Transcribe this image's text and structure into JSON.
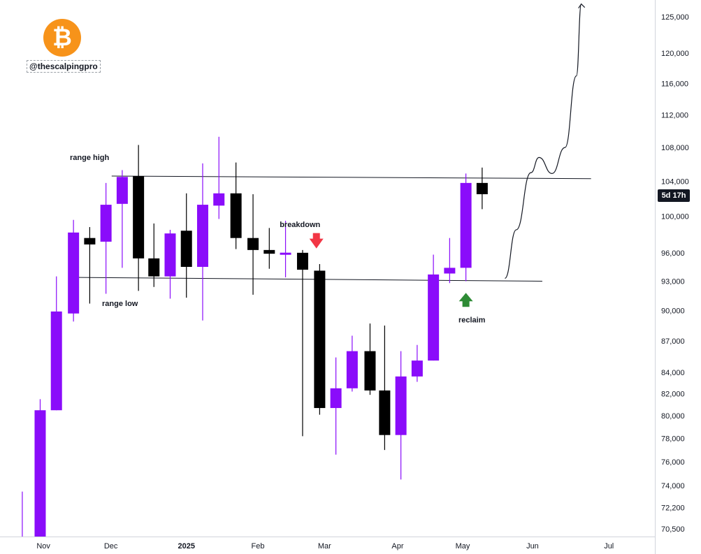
{
  "brand": {
    "logo_glyph": "₿",
    "logo_color": "#f7931a",
    "handle": "@thescalpingpro"
  },
  "price_badge": "5d 17h",
  "colors": {
    "bull": "#8a0cfa",
    "bear": "#000000",
    "down_arrow": "#f23645",
    "up_arrow": "#2e8b35",
    "line": "#131722",
    "axis_border": "#d1d4dc"
  },
  "chart_data": {
    "type": "candlestick",
    "title": "",
    "xlabel": "",
    "ylabel": "",
    "y_scale": "log",
    "ylim": [
      69500,
      129000
    ],
    "y_ticks": [
      125000,
      120000,
      116000,
      112000,
      108000,
      104000,
      100000,
      96000,
      93000,
      90000,
      87000,
      84000,
      82000,
      80000,
      78000,
      76000,
      74000,
      72200,
      70500
    ],
    "y_tick_labels": [
      "125,000",
      "120,000",
      "116,000",
      "112,000",
      "108,000",
      "104,000",
      "100,000",
      "96,000",
      "93,000",
      "90,000",
      "87,000",
      "84,000",
      "82,000",
      "80,000",
      "78,000",
      "76,000",
      "74,000",
      "72,200",
      "70,500"
    ],
    "x_tick_labels": [
      {
        "label": "Nov",
        "week": 0.5,
        "bold": false
      },
      {
        "label": "Dec",
        "week": 4.65,
        "bold": false
      },
      {
        "label": "2025",
        "week": 9.3,
        "bold": true
      },
      {
        "label": "Feb",
        "week": 13.7,
        "bold": false
      },
      {
        "label": "Mar",
        "week": 17.8,
        "bold": false
      },
      {
        "label": "Apr",
        "week": 22.3,
        "bold": false
      },
      {
        "label": "May",
        "week": 26.3,
        "bold": false
      },
      {
        "label": "Jun",
        "week": 30.6,
        "bold": false
      },
      {
        "label": "Jul",
        "week": 35.3,
        "bold": false
      }
    ],
    "candles": [
      {
        "week": -0.8,
        "open": 69000,
        "high": 73500,
        "low": 69000,
        "close": 69500
      },
      {
        "week": 0.3,
        "open": 69000,
        "high": 81500,
        "low": 69000,
        "close": 80500
      },
      {
        "week": 1.3,
        "open": 80500,
        "high": 93500,
        "low": 80500,
        "close": 89900
      },
      {
        "week": 2.35,
        "open": 89700,
        "high": 99600,
        "low": 88900,
        "close": 98200
      },
      {
        "week": 3.35,
        "open": 97600,
        "high": 98800,
        "low": 90700,
        "close": 96900
      },
      {
        "week": 4.35,
        "open": 97200,
        "high": 103800,
        "low": 91700,
        "close": 101300
      },
      {
        "week": 5.35,
        "open": 101400,
        "high": 105300,
        "low": 94400,
        "close": 104500
      },
      {
        "week": 6.35,
        "open": 104600,
        "high": 108300,
        "low": 92000,
        "close": 95400
      },
      {
        "week": 7.3,
        "open": 95400,
        "high": 99200,
        "low": 92400,
        "close": 93500
      },
      {
        "week": 8.3,
        "open": 93500,
        "high": 98500,
        "low": 91200,
        "close": 98100
      },
      {
        "week": 9.3,
        "open": 98400,
        "high": 102600,
        "low": 91300,
        "close": 94500
      },
      {
        "week": 10.3,
        "open": 94500,
        "high": 106100,
        "low": 89000,
        "close": 101300
      },
      {
        "week": 11.3,
        "open": 101200,
        "high": 109300,
        "low": 99700,
        "close": 102600
      },
      {
        "week": 12.35,
        "open": 102600,
        "high": 106200,
        "low": 96400,
        "close": 97600
      },
      {
        "week": 13.4,
        "open": 97600,
        "high": 102500,
        "low": 91600,
        "close": 96300
      },
      {
        "week": 14.4,
        "open": 96300,
        "high": 98700,
        "low": 94300,
        "close": 95900
      },
      {
        "week": 15.4,
        "open": 95800,
        "high": 99500,
        "low": 93400,
        "close": 96000
      },
      {
        "week": 16.45,
        "open": 96000,
        "high": 96300,
        "low": 78200,
        "close": 94200
      },
      {
        "week": 17.5,
        "open": 94100,
        "high": 94800,
        "low": 80100,
        "close": 80700
      },
      {
        "week": 18.5,
        "open": 80700,
        "high": 85400,
        "low": 76600,
        "close": 82500
      },
      {
        "week": 19.5,
        "open": 82500,
        "high": 87500,
        "low": 82200,
        "close": 86000
      },
      {
        "week": 20.6,
        "open": 86000,
        "high": 88700,
        "low": 81900,
        "close": 82300
      },
      {
        "week": 21.5,
        "open": 82300,
        "high": 88500,
        "low": 77000,
        "close": 78300
      },
      {
        "week": 22.5,
        "open": 78300,
        "high": 86000,
        "low": 74500,
        "close": 83600
      },
      {
        "week": 23.5,
        "open": 83600,
        "high": 86600,
        "low": 83100,
        "close": 85100
      },
      {
        "week": 24.5,
        "open": 85100,
        "high": 95800,
        "low": 85100,
        "close": 93700
      },
      {
        "week": 25.5,
        "open": 93800,
        "high": 97600,
        "low": 92800,
        "close": 94400
      },
      {
        "week": 26.5,
        "open": 94400,
        "high": 104900,
        "low": 93000,
        "close": 103800
      },
      {
        "week": 27.5,
        "open": 103800,
        "high": 105600,
        "low": 100800,
        "close": 102500
      }
    ],
    "range_high": {
      "price": 104600,
      "price_end": 104300,
      "from_week": 4.7,
      "to_week": 34.2,
      "label": "range high"
    },
    "range_low": {
      "price": 93400,
      "price_end": 93000,
      "from_week": 2.2,
      "to_week": 31.2,
      "label": "range low"
    },
    "annotations": [
      {
        "text": "breakdown",
        "week": 15.6,
        "price": 98800
      },
      {
        "text": "reclaim",
        "week": 26.6,
        "price": 88800
      }
    ],
    "projection": [
      {
        "week": 28.9,
        "price": 93300
      },
      {
        "week": 29.6,
        "price": 98500
      },
      {
        "week": 30.5,
        "price": 105000
      },
      {
        "week": 31.0,
        "price": 106800
      },
      {
        "week": 31.8,
        "price": 104900
      },
      {
        "week": 32.6,
        "price": 108000
      },
      {
        "week": 33.3,
        "price": 117000
      },
      {
        "week": 33.6,
        "price": 126800
      }
    ],
    "markers": [
      {
        "type": "down-arrow",
        "week": 17.3,
        "price": 97300
      },
      {
        "type": "up-arrow",
        "week": 26.5,
        "price": 91000
      }
    ]
  }
}
